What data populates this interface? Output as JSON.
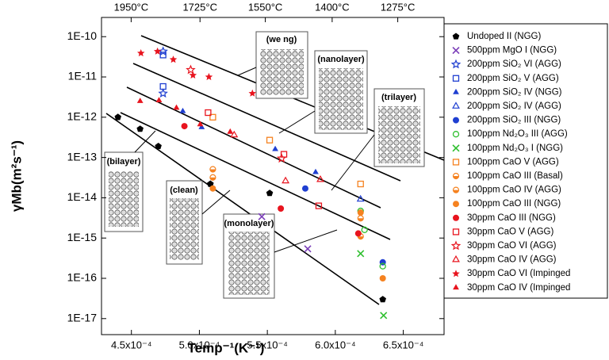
{
  "chart_data": {
    "type": "scatter",
    "x_label": "Temp⁻¹(K⁻¹)",
    "y_label": "γMb(m²s⁻¹)",
    "log_y": true,
    "xlim": [
      0.000428,
      0.00068
    ],
    "ylim": [
      4e-18,
      3e-10
    ],
    "xticks": [
      {
        "value": 0.00045,
        "label": "4.5x10⁻⁴"
      },
      {
        "value": 0.0005,
        "label": "5.0x10⁻⁴"
      },
      {
        "value": 0.00055,
        "label": "5.5x10⁻⁴"
      },
      {
        "value": 0.0006,
        "label": "6.0x10⁻⁴"
      },
      {
        "value": 0.00065,
        "label": "6.5x10⁻⁴"
      }
    ],
    "yticks": [
      {
        "value": 1e-10,
        "label": "1E-10"
      },
      {
        "value": 1e-11,
        "label": "1E-11"
      },
      {
        "value": 1e-12,
        "label": "1E-12"
      },
      {
        "value": 1e-13,
        "label": "1E-13"
      },
      {
        "value": 1e-14,
        "label": "1E-14"
      },
      {
        "value": 1e-15,
        "label": "1E-15"
      },
      {
        "value": 1e-16,
        "label": "1E-16"
      },
      {
        "value": 1e-17,
        "label": "1E-17"
      }
    ],
    "x2ticks": [
      {
        "value": 1950,
        "label": "1950°C"
      },
      {
        "value": 1725,
        "label": "1725°C"
      },
      {
        "value": 1550,
        "label": "1550°C"
      },
      {
        "value": 1400,
        "label": "1400°C"
      },
      {
        "value": 1275,
        "label": "1275°C"
      }
    ],
    "annotations": [
      "(bilayer)",
      "(clean)",
      "(monolayer)",
      "(nanolayer)",
      "(trilayer)",
      "(we    ng)"
    ],
    "series": [
      {
        "name": "Undoped II (NGG)",
        "color": "#000000",
        "marker": "pentagon",
        "x": [
          0.0004401,
          0.0004564,
          0.0004698,
          0.0005081,
          0.0005517,
          0.0006349
        ],
        "values": [
          1e-12,
          5.1e-13,
          1.9e-13,
          2.2e-14,
          1.3e-14,
          3e-17
        ]
      },
      {
        "name": "500ppm MgO I (NGG)",
        "color": "#7a3db8",
        "marker": "x",
        "x": [
          0.0005459,
          0.0005797
        ],
        "values": [
          3.4e-15,
          5.4e-16
        ]
      },
      {
        "name": "200ppm SiO₂ VI (AGG)",
        "color": "#1f3fd1",
        "marker": "star-open",
        "x": [
          0.0004733,
          0.0004733
        ],
        "values": [
          4.3e-11,
          3.9e-12
        ]
      },
      {
        "name": "200ppm SiO₂ V (AGG)",
        "color": "#1f3fd1",
        "marker": "square-open",
        "x": [
          0.0004733,
          0.0004733
        ],
        "values": [
          3.5e-11,
          5.8e-12
        ]
      },
      {
        "name": "200ppm SiO₂ IV (NGG)",
        "color": "#1f3fd1",
        "marker": "triangle",
        "x": [
          0.0004878,
          0.0005017,
          0.0005558,
          0.0005855
        ],
        "values": [
          1.4e-12,
          5.6e-13,
          1.6e-13,
          4.3e-14
        ]
      },
      {
        "name": "200ppm SiO₂ IV (AGG)",
        "color": "#1f3fd1",
        "marker": "triangle-open",
        "x": [
          0.0006186
        ],
        "values": [
          9.1e-15
        ]
      },
      {
        "name": "200ppm SiO₂ III (NGG)",
        "color": "#1f3fd1",
        "marker": "circle",
        "x": [
          0.0005779,
          0.0006349
        ],
        "values": [
          1.7e-14,
          2.5e-16
        ]
      },
      {
        "name": "100ppm Nd₂O₃ III (AGG)",
        "color": "#2fbf2f",
        "marker": "circle-open",
        "x": [
          0.0006186,
          0.0006215,
          0.0006349
        ],
        "values": [
          4.7e-15,
          1.6e-15,
          2e-16
        ]
      },
      {
        "name": "100ppm Nd₂O₃ I (NGG)",
        "color": "#2fbf2f",
        "marker": "x",
        "x": [
          0.0006186,
          0.0006355
        ],
        "values": [
          4.1e-16,
          1.2e-17
        ]
      },
      {
        "name": "100ppm CaO V (AGG)",
        "color": "#f58220",
        "marker": "square-open",
        "x": [
          0.0005099,
          0.0005517,
          0.0006186
        ],
        "values": [
          1e-12,
          2.7e-13,
          2.2e-14
        ]
      },
      {
        "name": "100ppm CaO III (Basal)",
        "color": "#f58220",
        "marker": "half-circle",
        "x": [
          0.0005099,
          0.0006186
        ],
        "values": [
          5.1e-14,
          1.1e-15
        ]
      },
      {
        "name": "100ppm CaO IV (AGG)",
        "color": "#f58220",
        "marker": "half-circle",
        "x": [
          0.0005099,
          0.0006186
        ],
        "values": [
          3.2e-14,
          3.1e-15
        ]
      },
      {
        "name": "100ppm CaO III (NGG)",
        "color": "#f58220",
        "marker": "circle",
        "x": [
          0.0005099,
          0.0006186,
          0.0006349
        ],
        "values": [
          1.7e-14,
          4.3e-15,
          1e-16
        ]
      },
      {
        "name": "30ppm CaO III (NGG)",
        "color": "#e8141e",
        "marker": "circle",
        "x": [
          0.000489,
          0.0005599,
          0.0006169
        ],
        "values": [
          6e-13,
          5.4e-15,
          1.3e-15
        ]
      },
      {
        "name": "30ppm CaO V (AGG)",
        "color": "#e8141e",
        "marker": "square-open",
        "x": [
          0.0005064,
          0.0005622,
          0.0005878
        ],
        "values": [
          1.3e-12,
          1.2e-13,
          6.3e-15
        ]
      },
      {
        "name": "30ppm CaO VI (AGG)",
        "color": "#e8141e",
        "marker": "star-open",
        "x": [
          0.0004936,
          0.0005605
        ],
        "values": [
          1.5e-11,
          9.5e-14
        ]
      },
      {
        "name": "30ppm CaO IV (AGG)",
        "color": "#e8141e",
        "marker": "triangle-open",
        "x": [
          0.0005256,
          0.0005634,
          0.000589
        ],
        "values": [
          3.6e-13,
          2.6e-14,
          2.8e-14
        ]
      },
      {
        "name": "30ppm CaO VI (Impinged",
        "color": "#e8141e",
        "marker": "star",
        "x": [
          0.000457,
          0.0004692,
          0.0004808,
          0.0004953,
          0.000507,
          0.000539
        ],
        "values": [
          3.9e-11,
          4.3e-11,
          2.7e-11,
          1.1e-11,
          1e-11,
          3.9e-12
        ]
      },
      {
        "name": "30ppm CaO IV (Impinged",
        "color": "#e8141e",
        "marker": "triangle",
        "x": [
          0.0004564,
          0.0004703,
          0.0004831,
          0.0005006,
          0.0005227
        ],
        "values": [
          2.5e-12,
          2.6e-12,
          1.7e-12,
          6.6e-13,
          4.3e-13
        ]
      }
    ]
  }
}
